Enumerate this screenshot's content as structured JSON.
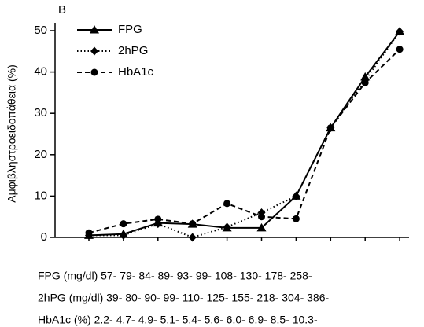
{
  "chart_data": {
    "type": "line",
    "panel_label": "B",
    "y_label": "Αμφιβληστροειδοπάθεια (%)",
    "categories": [
      null,
      null,
      null,
      null,
      null,
      null,
      null,
      null,
      null,
      null
    ],
    "x_label_rows": [
      "FPG (mg/dl) 57- 79- 84- 89- 93- 99- 108- 130- 178- 258-",
      "2hPG (mg/dl) 39- 80- 90- 99- 110- 125- 155- 218- 304- 386-",
      "HbA1c (%) 2.2- 4.7- 4.9- 5.1- 5.4- 5.6- 6.0- 6.9- 8.5- 10.3-"
    ],
    "series": [
      {
        "name": "FPG",
        "color": "#000000",
        "marker": "triangle",
        "dash": "solid",
        "values": [
          0.5,
          0.8,
          3.5,
          3.2,
          2.3,
          2.3,
          10,
          26.5,
          38.8,
          49.8
        ]
      },
      {
        "name": "2hPG",
        "color": "#000000",
        "marker": "diamond",
        "dash": "dotted",
        "values": [
          0.5,
          0.5,
          3.3,
          0,
          2.5,
          6,
          10,
          26.5,
          38,
          49.8
        ]
      },
      {
        "name": "HbA1c",
        "color": "#000000",
        "marker": "circle",
        "dash": "dashed",
        "values": [
          1.1,
          3.3,
          4.4,
          3.3,
          8.2,
          5,
          4.5,
          26.5,
          37.4,
          45.5
        ]
      }
    ],
    "ylim": [
      0,
      50
    ],
    "yticks": [
      0,
      10,
      20,
      30,
      40,
      50
    ],
    "grid": false,
    "legend": "top-left"
  }
}
